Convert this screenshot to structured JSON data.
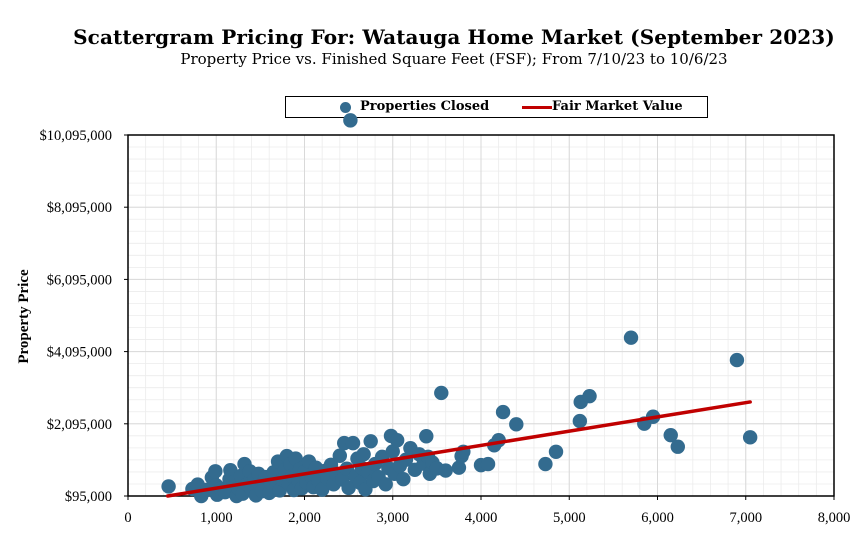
{
  "chart_data": {
    "type": "scatter",
    "title": "Scattergram Pricing For: Watauga Home Market (September 2023)",
    "subtitle": "Property Price vs. Finished Square Feet (FSF); From 7/10/23 to 10/6/23",
    "xlabel": "",
    "ylabel": "Property Price",
    "xlim": [
      0,
      8000
    ],
    "ylim": [
      95000,
      10095000
    ],
    "x_ticks": [
      "0",
      "1,000",
      "2,000",
      "3,000",
      "4,000",
      "5,000",
      "6,000",
      "7,000",
      "8,000"
    ],
    "y_ticks": [
      "$95,000",
      "$2,095,000",
      "$4,095,000",
      "$6,095,000",
      "$8,095,000",
      "$10,095,000"
    ],
    "grid": true,
    "legend_placement": "top-center",
    "legend": [
      "Properties Closed",
      "Fair Market Value"
    ],
    "colors": {
      "points": "#336b8f",
      "trend": "#c00000",
      "grid": "#d9d9d9"
    },
    "series": [
      {
        "name": "Properties Closed",
        "points": [
          [
            460,
            360000
          ],
          [
            730,
            290000
          ],
          [
            790,
            410000
          ],
          [
            830,
            90000
          ],
          [
            900,
            270000
          ],
          [
            950,
            610000
          ],
          [
            990,
            780000
          ],
          [
            1000,
            390000
          ],
          [
            1010,
            130000
          ],
          [
            1050,
            300000
          ],
          [
            1100,
            200000
          ],
          [
            1150,
            560000
          ],
          [
            1160,
            810000
          ],
          [
            1200,
            480000
          ],
          [
            1230,
            90000
          ],
          [
            1250,
            310000
          ],
          [
            1280,
            650000
          ],
          [
            1300,
            160000
          ],
          [
            1320,
            980000
          ],
          [
            1350,
            420000
          ],
          [
            1380,
            780000
          ],
          [
            1400,
            290000
          ],
          [
            1430,
            540000
          ],
          [
            1450,
            110000
          ],
          [
            1480,
            710000
          ],
          [
            1500,
            400000
          ],
          [
            1520,
            230000
          ],
          [
            1560,
            620000
          ],
          [
            1600,
            180000
          ],
          [
            1620,
            460000
          ],
          [
            1650,
            750000
          ],
          [
            1680,
            340000
          ],
          [
            1700,
            1050000
          ],
          [
            1720,
            250000
          ],
          [
            1750,
            560000
          ],
          [
            1780,
            820000
          ],
          [
            1800,
            1200000
          ],
          [
            1820,
            430000
          ],
          [
            1840,
            980000
          ],
          [
            1860,
            650000
          ],
          [
            1880,
            260000
          ],
          [
            1900,
            1130000
          ],
          [
            1930,
            520000
          ],
          [
            1950,
            840000
          ],
          [
            1970,
            310000
          ],
          [
            2000,
            760000
          ],
          [
            2020,
            470000
          ],
          [
            2050,
            1050000
          ],
          [
            2080,
            620000
          ],
          [
            2100,
            340000
          ],
          [
            2130,
            880000
          ],
          [
            2160,
            510000
          ],
          [
            2200,
            270000
          ],
          [
            2230,
            790000
          ],
          [
            2260,
            580000
          ],
          [
            2300,
            960000
          ],
          [
            2330,
            420000
          ],
          [
            2360,
            700000
          ],
          [
            2400,
            1210000
          ],
          [
            2430,
            550000
          ],
          [
            2450,
            1560000
          ],
          [
            2480,
            850000
          ],
          [
            2500,
            320000
          ],
          [
            2520,
            10500000
          ],
          [
            2550,
            1560000
          ],
          [
            2580,
            640000
          ],
          [
            2600,
            1130000
          ],
          [
            2630,
            460000
          ],
          [
            2650,
            870000
          ],
          [
            2670,
            1250000
          ],
          [
            2690,
            280000
          ],
          [
            2720,
            750000
          ],
          [
            2750,
            1610000
          ],
          [
            2780,
            510000
          ],
          [
            2800,
            980000
          ],
          [
            2840,
            620000
          ],
          [
            2880,
            1180000
          ],
          [
            2920,
            420000
          ],
          [
            2950,
            870000
          ],
          [
            2980,
            1760000
          ],
          [
            3000,
            1330000
          ],
          [
            3020,
            710000
          ],
          [
            3050,
            1640000
          ],
          [
            3080,
            930000
          ],
          [
            3120,
            560000
          ],
          [
            3150,
            1100000
          ],
          [
            3200,
            1420000
          ],
          [
            3250,
            820000
          ],
          [
            3300,
            1250000
          ],
          [
            3350,
            990000
          ],
          [
            3380,
            1750000
          ],
          [
            3400,
            1180000
          ],
          [
            3420,
            710000
          ],
          [
            3450,
            1020000
          ],
          [
            3500,
            860000
          ],
          [
            3550,
            2950000
          ],
          [
            3600,
            800000
          ],
          [
            3750,
            880000
          ],
          [
            3780,
            1200000
          ],
          [
            3800,
            1320000
          ],
          [
            4000,
            950000
          ],
          [
            4080,
            980000
          ],
          [
            4150,
            1500000
          ],
          [
            4200,
            1640000
          ],
          [
            4250,
            2420000
          ],
          [
            4400,
            2080000
          ],
          [
            4730,
            980000
          ],
          [
            4850,
            1320000
          ],
          [
            5120,
            2170000
          ],
          [
            5130,
            2700000
          ],
          [
            5230,
            2860000
          ],
          [
            5700,
            4480000
          ],
          [
            5850,
            2100000
          ],
          [
            5950,
            2290000
          ],
          [
            6150,
            1780000
          ],
          [
            6230,
            1460000
          ],
          [
            6900,
            3860000
          ],
          [
            7050,
            1720000
          ]
        ]
      },
      {
        "name": "Fair Market Value",
        "points": [
          [
            450,
            95000
          ],
          [
            7050,
            2700000
          ]
        ]
      }
    ]
  }
}
